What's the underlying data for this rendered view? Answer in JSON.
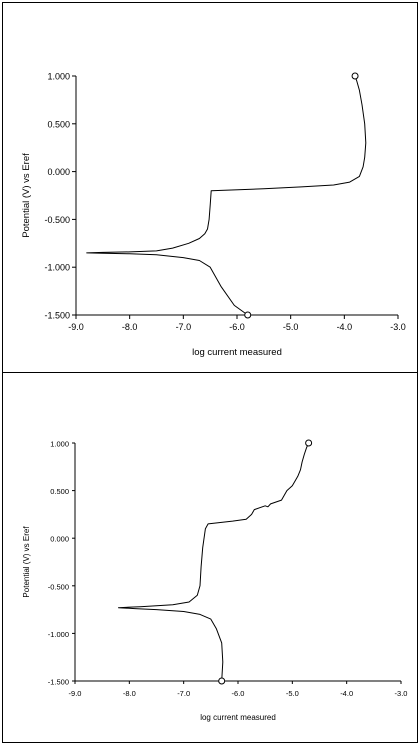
{
  "chart_data": [
    {
      "type": "line",
      "title": "",
      "xlabel": "log current measured",
      "ylabel": "Potential (V) vs Eref",
      "xlim": [
        -9.0,
        -3.0
      ],
      "ylim": [
        -1.5,
        1.0
      ],
      "x_ticks": [
        "-9.0",
        "-8.0",
        "-7.0",
        "-6.0",
        "-5.0",
        "-4.0",
        "-3.0"
      ],
      "y_ticks": [
        "1.000",
        "0.500",
        "0.000",
        "-0.500",
        "-1.000",
        "-1.500"
      ],
      "grid": false,
      "legend": "none",
      "series": [
        {
          "x": [
            -5.8,
            -6.05,
            -6.3,
            -6.5,
            -6.7,
            -7.0,
            -7.5,
            -8.0,
            -8.5,
            -8.8,
            -8.5,
            -8.0,
            -7.5,
            -7.2,
            -6.9,
            -6.7,
            -6.6,
            -6.55,
            -6.52,
            -6.5,
            -6.48,
            -5.5,
            -4.8,
            -4.2,
            -3.9,
            -3.72,
            -3.65,
            -3.62,
            -3.6,
            -3.62,
            -3.67,
            -3.72,
            -3.77,
            -3.8
          ],
          "y": [
            -1.5,
            -1.4,
            -1.2,
            -1.0,
            -0.93,
            -0.9,
            -0.87,
            -0.86,
            -0.855,
            -0.85,
            -0.845,
            -0.84,
            -0.83,
            -0.8,
            -0.75,
            -0.7,
            -0.65,
            -0.6,
            -0.5,
            -0.35,
            -0.2,
            -0.18,
            -0.16,
            -0.14,
            -0.11,
            -0.05,
            0.05,
            0.15,
            0.3,
            0.5,
            0.7,
            0.85,
            0.95,
            1.0
          ]
        }
      ],
      "markers": [
        {
          "x": -3.8,
          "y": 1.0
        },
        {
          "x": -5.8,
          "y": -1.5
        }
      ]
    },
    {
      "type": "line",
      "title": "",
      "xlabel": "log current measured",
      "ylabel": "Potential (V) vs Eref",
      "xlim": [
        -9.0,
        -3.0
      ],
      "ylim": [
        -1.5,
        1.0
      ],
      "x_ticks": [
        "-9.0",
        "-8.0",
        "-7.0",
        "-6.0",
        "-5.0",
        "-4.0",
        "-3.0"
      ],
      "y_ticks": [
        "1.000",
        "0.500",
        "0.000",
        "-0.500",
        "-1.000",
        "-1.500"
      ],
      "grid": false,
      "legend": "none",
      "series": [
        {
          "x": [
            -6.3,
            -6.28,
            -6.3,
            -6.4,
            -6.5,
            -6.7,
            -7.0,
            -7.5,
            -7.9,
            -8.2,
            -7.8,
            -7.2,
            -6.9,
            -6.75,
            -6.7,
            -6.68,
            -6.65,
            -6.6,
            -6.55,
            -6.1,
            -5.85,
            -5.75,
            -5.7,
            -5.5,
            -5.45,
            -5.4,
            -5.2,
            -5.1,
            -5.0,
            -4.95,
            -4.9,
            -4.85,
            -4.82,
            -4.78,
            -4.74,
            -4.7
          ],
          "y": [
            -1.5,
            -1.3,
            -1.1,
            -0.95,
            -0.85,
            -0.8,
            -0.77,
            -0.75,
            -0.74,
            -0.73,
            -0.72,
            -0.7,
            -0.67,
            -0.6,
            -0.5,
            -0.3,
            -0.1,
            0.1,
            0.15,
            0.18,
            0.2,
            0.25,
            0.3,
            0.34,
            0.33,
            0.36,
            0.4,
            0.5,
            0.55,
            0.6,
            0.65,
            0.72,
            0.8,
            0.88,
            0.95,
            1.0
          ]
        }
      ],
      "markers": [
        {
          "x": -4.7,
          "y": 1.0
        },
        {
          "x": -6.3,
          "y": -1.5
        }
      ]
    }
  ]
}
